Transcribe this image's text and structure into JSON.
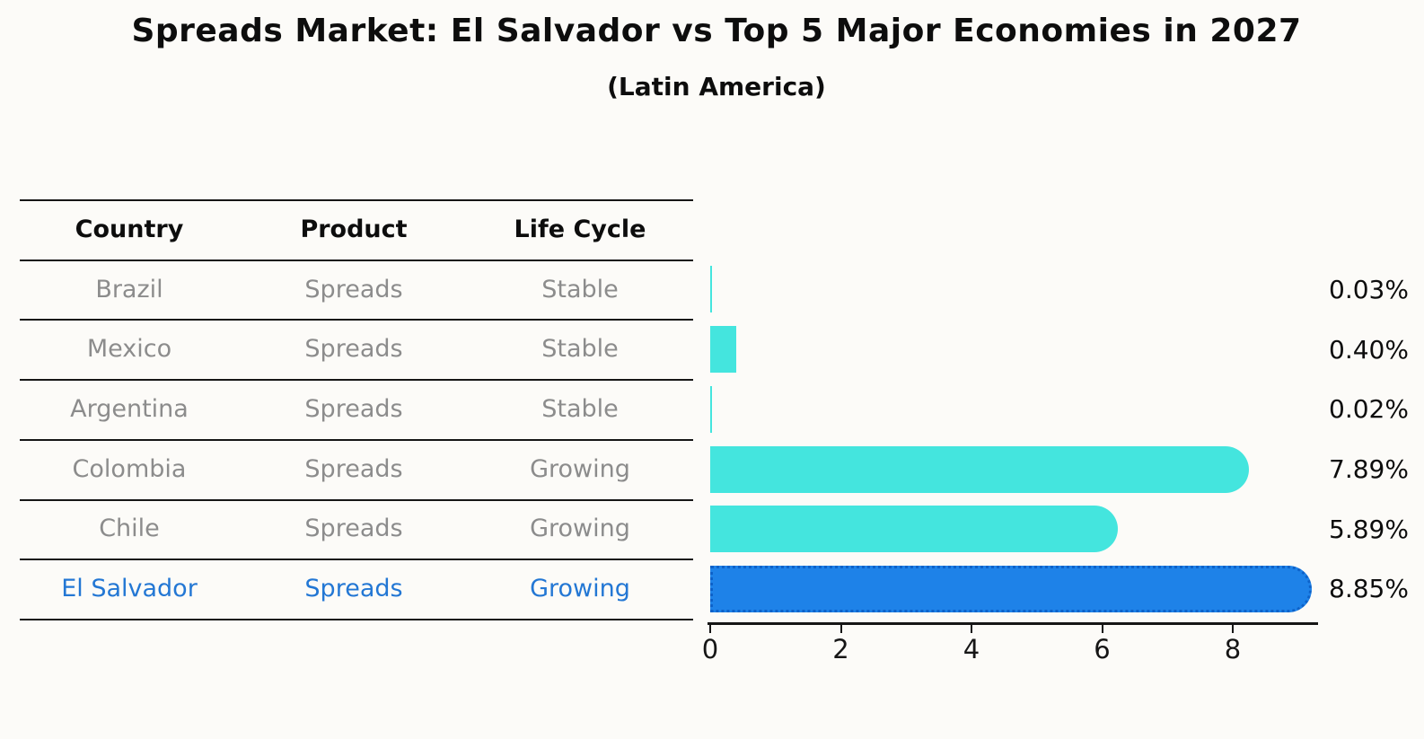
{
  "title": "Spreads Market: El Salvador vs Top 5 Major Economies in 2027",
  "subtitle": "(Latin America)",
  "table": {
    "columns": [
      "Country",
      "Product",
      "Life Cycle"
    ],
    "rows": [
      {
        "country": "Brazil",
        "product": "Spreads",
        "life_cycle": "Stable",
        "highlight": false
      },
      {
        "country": "Mexico",
        "product": "Spreads",
        "life_cycle": "Stable",
        "highlight": false
      },
      {
        "country": "Argentina",
        "product": "Spreads",
        "life_cycle": "Stable",
        "highlight": false
      },
      {
        "country": "Colombia",
        "product": "Spreads",
        "life_cycle": "Growing",
        "highlight": false
      },
      {
        "country": "Chile",
        "product": "Spreads",
        "life_cycle": "Growing",
        "highlight": false
      },
      {
        "country": "El Salvador",
        "product": "Spreads",
        "life_cycle": "Growing",
        "highlight": true
      }
    ]
  },
  "chart_data": {
    "type": "bar",
    "orientation": "horizontal",
    "title": "Spreads Market: El Salvador vs Top 5 Major Economies in 2027",
    "subtitle": "(Latin America)",
    "categories": [
      "Brazil",
      "Mexico",
      "Argentina",
      "Colombia",
      "Chile",
      "El Salvador"
    ],
    "values": [
      0.03,
      0.4,
      0.02,
      7.89,
      5.89,
      8.85
    ],
    "value_labels": [
      "0.03%",
      "0.40%",
      "0.02%",
      "7.89%",
      "5.89%",
      "8.85%"
    ],
    "x_ticks": [
      0,
      2,
      4,
      6,
      8
    ],
    "xlim": [
      0,
      9.3
    ],
    "grid": false,
    "legend": false,
    "highlight_category": "El Salvador",
    "colors": {
      "bar": "#44E5DE",
      "highlight_bar": "#1E82E8",
      "highlight_border": "#0D62C9",
      "highlight_text": "#2377D4",
      "muted_text": "#8C8C8C",
      "text": "#0D0D0D"
    }
  }
}
